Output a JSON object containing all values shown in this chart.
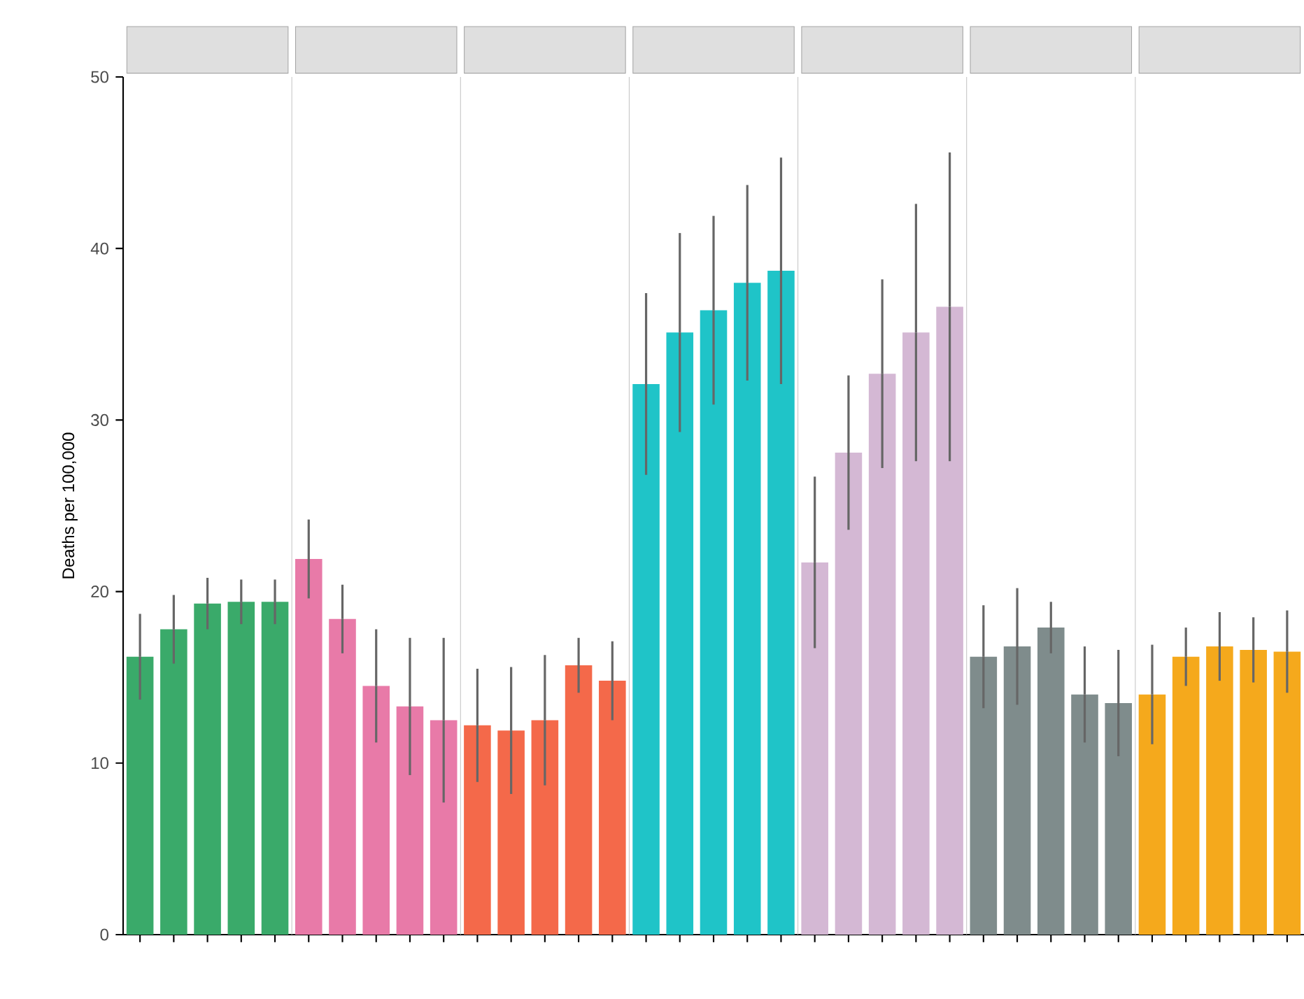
{
  "chart_data": {
    "type": "bar",
    "categories": [
      null,
      null,
      null,
      null,
      null,
      null,
      null,
      null,
      null,
      null,
      null,
      null,
      null,
      null,
      null,
      null,
      null,
      null,
      null,
      null,
      null,
      null,
      null,
      null,
      null,
      null,
      null,
      null,
      null,
      null,
      null,
      null,
      null,
      null,
      null
    ],
    "values": [
      16.2,
      17.8,
      19.3,
      19.4,
      19.4,
      21.9,
      18.4,
      14.5,
      13.3,
      12.5,
      12.2,
      11.9,
      12.5,
      15.7,
      14.8,
      32.1,
      35.1,
      36.4,
      38.0,
      38.7,
      21.7,
      28.1,
      32.7,
      35.1,
      36.6,
      16.2,
      16.8,
      17.9,
      14.0,
      13.5,
      14.0,
      16.2,
      16.8,
      16.6,
      16.5
    ],
    "errors": [
      2.5,
      2.0,
      1.5,
      1.3,
      1.3,
      2.3,
      2.0,
      3.3,
      4.0,
      4.8,
      3.3,
      3.7,
      3.8,
      1.6,
      2.3,
      5.3,
      5.8,
      5.5,
      5.7,
      6.6,
      5.0,
      4.5,
      5.5,
      7.5,
      9.0,
      3.0,
      3.4,
      1.5,
      2.8,
      3.1,
      2.9,
      1.7,
      2.0,
      1.9,
      2.4
    ],
    "colors": [
      "#3aaa6a",
      "#3aaa6a",
      "#3aaa6a",
      "#3aaa6a",
      "#3aaa6a",
      "#e87aa8",
      "#e87aa8",
      "#e87aa8",
      "#e87aa8",
      "#e87aa8",
      "#f4694a",
      "#f4694a",
      "#f4694a",
      "#f4694a",
      "#f4694a",
      "#1fc4c8",
      "#1fc4c8",
      "#1fc4c8",
      "#1fc4c8",
      "#1fc4c8",
      "#d4b8d4",
      "#d4b8d4",
      "#d4b8d4",
      "#d4b8d4",
      "#d4b8d4",
      "#7f8c8c",
      "#7f8c8c",
      "#7f8c8c",
      "#7f8c8c",
      "#7f8c8c",
      "#f5a91c",
      "#f5a91c",
      "#f5a91c",
      "#f5a91c",
      "#f5a91c"
    ],
    "ylim": [
      0,
      50
    ],
    "yticks": [
      0,
      10,
      20,
      30,
      40,
      50
    ],
    "ylabel": "Deaths per 100,000"
  }
}
